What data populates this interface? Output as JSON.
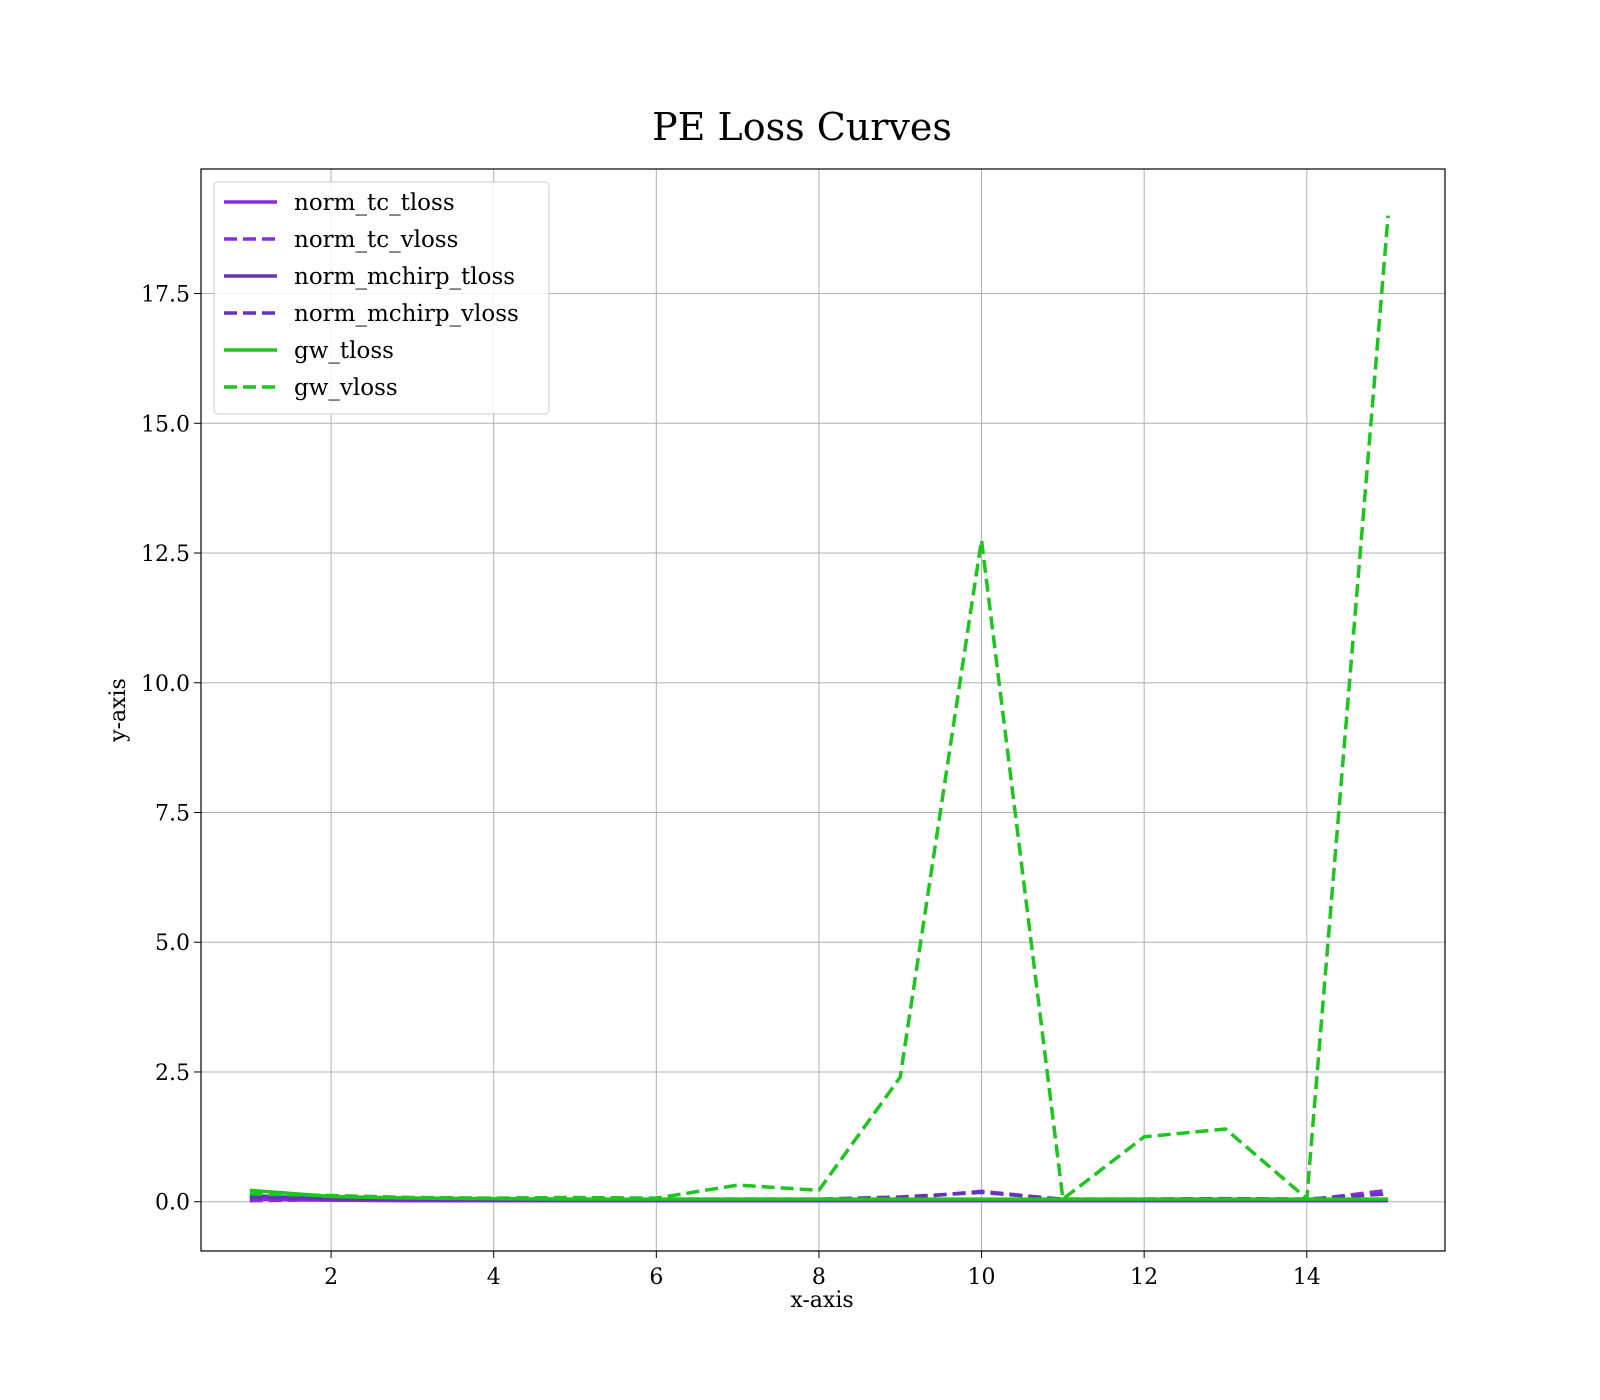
{
  "chart_data": {
    "type": "line",
    "title": "PE Loss Curves",
    "xlabel": "x-axis",
    "ylabel": "y-axis",
    "xlim": [
      0.4,
      15.7
    ],
    "ylim": [
      -0.95,
      19.9
    ],
    "xticks": [
      2,
      4,
      6,
      8,
      10,
      12,
      14
    ],
    "xtick_labels": [
      "2",
      "4",
      "6",
      "8",
      "10",
      "12",
      "14"
    ],
    "yticks": [
      0.0,
      2.5,
      5.0,
      7.5,
      10.0,
      12.5,
      15.0,
      17.5
    ],
    "ytick_labels": [
      "0.0",
      "2.5",
      "5.0",
      "7.5",
      "10.0",
      "12.5",
      "15.0",
      "17.5"
    ],
    "grid": true,
    "legend_position": "top-left",
    "x": [
      1,
      2,
      3,
      4,
      5,
      6,
      7,
      8,
      9,
      10,
      11,
      12,
      13,
      14,
      15
    ],
    "series": [
      {
        "name": "norm_tc_tloss",
        "color": "#8a2be2",
        "style": "solid",
        "values": [
          0.05,
          0.03,
          0.02,
          0.02,
          0.02,
          0.02,
          0.02,
          0.02,
          0.02,
          0.02,
          0.02,
          0.02,
          0.02,
          0.02,
          0.02
        ]
      },
      {
        "name": "norm_tc_vloss",
        "color": "#8a2be2",
        "style": "dashed",
        "values": [
          0.02,
          0.04,
          0.03,
          0.03,
          0.03,
          0.03,
          0.03,
          0.03,
          0.06,
          0.2,
          0.04,
          0.04,
          0.05,
          0.03,
          0.22
        ]
      },
      {
        "name": "norm_mchirp_tloss",
        "color": "#6633bb",
        "style": "solid",
        "values": [
          0.12,
          0.05,
          0.04,
          0.03,
          0.03,
          0.03,
          0.03,
          0.03,
          0.03,
          0.03,
          0.03,
          0.03,
          0.03,
          0.03,
          0.03
        ]
      },
      {
        "name": "norm_mchirp_vloss",
        "color": "#6633bb",
        "style": "dashed",
        "values": [
          0.08,
          0.06,
          0.05,
          0.05,
          0.05,
          0.05,
          0.05,
          0.05,
          0.09,
          0.18,
          0.05,
          0.05,
          0.06,
          0.05,
          0.15
        ]
      },
      {
        "name": "gw_tloss",
        "color": "#1ec51e",
        "style": "solid",
        "values": [
          0.22,
          0.1,
          0.07,
          0.06,
          0.05,
          0.05,
          0.05,
          0.05,
          0.05,
          0.05,
          0.05,
          0.05,
          0.05,
          0.05,
          0.05
        ]
      },
      {
        "name": "gw_vloss",
        "color": "#1ec51e",
        "style": "dashed",
        "values": [
          0.15,
          0.12,
          0.08,
          0.07,
          0.08,
          0.07,
          0.32,
          0.22,
          2.4,
          12.75,
          0.05,
          1.25,
          1.4,
          0.06,
          19.0
        ]
      }
    ]
  }
}
